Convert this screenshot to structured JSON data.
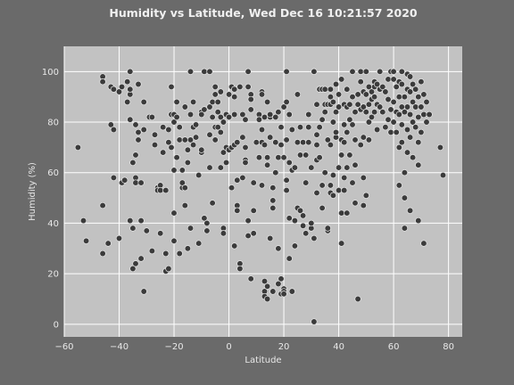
{
  "chart_data": {
    "type": "scatter",
    "title": "Humidity vs Latitude, Wed Dec 16 10:21:57 2020",
    "xlabel": "Latitude",
    "ylabel": "Humidity (%)",
    "xlim": [
      -60,
      85
    ],
    "ylim": [
      -5,
      110
    ],
    "xticks": [
      -60,
      -40,
      -20,
      0,
      20,
      40,
      60,
      80
    ],
    "yticks": [
      0,
      20,
      40,
      60,
      80,
      100
    ],
    "grid": true,
    "colors": {
      "page_bg": "#6a6a6a",
      "plot_bg": "#c2c2c2",
      "point_fill": "#3b3b3b",
      "point_edge": "#e6e6e6",
      "grid": "#ffffff"
    },
    "points": [
      [
        -55,
        70
      ],
      [
        -53,
        41
      ],
      [
        -52,
        33
      ],
      [
        -46,
        98
      ],
      [
        -46,
        96
      ],
      [
        -46,
        47
      ],
      [
        -46,
        28
      ],
      [
        -44,
        32
      ],
      [
        -43,
        79
      ],
      [
        -43,
        94
      ],
      [
        -42,
        77
      ],
      [
        -42,
        58
      ],
      [
        -42,
        93
      ],
      [
        -40,
        34
      ],
      [
        -40,
        92
      ],
      [
        -39,
        94
      ],
      [
        -39,
        56
      ],
      [
        -38,
        57
      ],
      [
        -37,
        88
      ],
      [
        -37,
        96
      ],
      [
        -36,
        100
      ],
      [
        -36,
        91
      ],
      [
        -36,
        93
      ],
      [
        -36,
        81
      ],
      [
        -36,
        41
      ],
      [
        -35,
        38
      ],
      [
        -35,
        22
      ],
      [
        -35,
        64
      ],
      [
        -34,
        79
      ],
      [
        -34,
        67
      ],
      [
        -34,
        58
      ],
      [
        -34,
        56
      ],
      [
        -34,
        24
      ],
      [
        -33,
        76
      ],
      [
        -33,
        95
      ],
      [
        -33,
        73
      ],
      [
        -32,
        56
      ],
      [
        -32,
        41
      ],
      [
        -32,
        26
      ],
      [
        -31,
        13
      ],
      [
        -31,
        88
      ],
      [
        -31,
        77
      ],
      [
        -30,
        37
      ],
      [
        -29,
        82
      ],
      [
        -28,
        82
      ],
      [
        -28,
        29
      ],
      [
        -27,
        75
      ],
      [
        -27,
        71
      ],
      [
        -26,
        54
      ],
      [
        -26,
        53
      ],
      [
        -25,
        55
      ],
      [
        -25,
        53
      ],
      [
        -25,
        36
      ],
      [
        -24,
        78
      ],
      [
        -24,
        68
      ],
      [
        -23,
        53
      ],
      [
        -23,
        28
      ],
      [
        -23,
        21
      ],
      [
        -22,
        22
      ],
      [
        -22,
        77
      ],
      [
        -22,
        72
      ],
      [
        -21,
        70
      ],
      [
        -21,
        83
      ],
      [
        -21,
        94
      ],
      [
        -20,
        80
      ],
      [
        -20,
        61
      ],
      [
        -20,
        83
      ],
      [
        -20,
        44
      ],
      [
        -20,
        33
      ],
      [
        -19,
        88
      ],
      [
        -19,
        82
      ],
      [
        -19,
        66
      ],
      [
        -18,
        28
      ],
      [
        -18,
        78
      ],
      [
        -18,
        73
      ],
      [
        -17,
        54
      ],
      [
        -17,
        56
      ],
      [
        -17,
        61
      ],
      [
        -16,
        86
      ],
      [
        -16,
        73
      ],
      [
        -16,
        54
      ],
      [
        -16,
        47
      ],
      [
        -15,
        64
      ],
      [
        -15,
        69
      ],
      [
        -15,
        30
      ],
      [
        -14,
        73
      ],
      [
        -14,
        83
      ],
      [
        -14,
        100
      ],
      [
        -14,
        38
      ],
      [
        -13,
        78
      ],
      [
        -13,
        71
      ],
      [
        -13,
        88
      ],
      [
        -12,
        79
      ],
      [
        -12,
        74
      ],
      [
        -11,
        32
      ],
      [
        -11,
        59
      ],
      [
        -10,
        68
      ],
      [
        -10,
        69
      ],
      [
        -10,
        84
      ],
      [
        -10,
        83
      ],
      [
        -9,
        100
      ],
      [
        -9,
        85
      ],
      [
        -9,
        42
      ],
      [
        -8,
        40
      ],
      [
        -8,
        37
      ],
      [
        -7,
        62
      ],
      [
        -7,
        86
      ],
      [
        -7,
        100
      ],
      [
        -7,
        75
      ],
      [
        -6,
        88
      ],
      [
        -6,
        82
      ],
      [
        -6,
        48
      ],
      [
        -5,
        94
      ],
      [
        -5,
        91
      ],
      [
        -5,
        78
      ],
      [
        -5,
        73
      ],
      [
        -4,
        88
      ],
      [
        -4,
        84
      ],
      [
        -4,
        78
      ],
      [
        -3,
        92
      ],
      [
        -3,
        82
      ],
      [
        -3,
        76
      ],
      [
        -3,
        62
      ],
      [
        -2,
        80
      ],
      [
        -2,
        68
      ],
      [
        -2,
        38
      ],
      [
        -2,
        36
      ],
      [
        -1,
        83
      ],
      [
        -1,
        70
      ],
      [
        -1,
        64
      ],
      [
        0,
        82
      ],
      [
        0,
        69
      ],
      [
        0,
        91
      ],
      [
        1,
        94
      ],
      [
        1,
        70
      ],
      [
        1,
        54
      ],
      [
        2,
        93
      ],
      [
        2,
        90
      ],
      [
        2,
        71
      ],
      [
        2,
        83
      ],
      [
        2,
        31
      ],
      [
        3,
        47
      ],
      [
        3,
        57
      ],
      [
        3,
        45
      ],
      [
        3,
        72
      ],
      [
        4,
        24
      ],
      [
        4,
        22
      ],
      [
        4,
        94
      ],
      [
        5,
        83
      ],
      [
        5,
        58
      ],
      [
        5,
        74
      ],
      [
        6,
        81
      ],
      [
        6,
        70
      ],
      [
        6,
        65
      ],
      [
        6,
        64
      ],
      [
        7,
        94
      ],
      [
        7,
        100
      ],
      [
        7,
        35
      ],
      [
        7,
        41
      ],
      [
        8,
        91
      ],
      [
        8,
        89
      ],
      [
        8,
        85
      ],
      [
        8,
        18
      ],
      [
        9,
        56
      ],
      [
        9,
        45
      ],
      [
        9,
        36
      ],
      [
        10,
        72
      ],
      [
        11,
        83
      ],
      [
        11,
        81
      ],
      [
        11,
        66
      ],
      [
        12,
        92
      ],
      [
        12,
        91
      ],
      [
        12,
        77
      ],
      [
        12,
        72
      ],
      [
        12,
        55
      ],
      [
        13,
        82
      ],
      [
        13,
        71
      ],
      [
        13,
        17
      ],
      [
        13,
        13
      ],
      [
        13,
        11
      ],
      [
        14,
        15
      ],
      [
        14,
        10
      ],
      [
        14,
        88
      ],
      [
        14,
        66
      ],
      [
        14,
        63
      ],
      [
        15,
        82
      ],
      [
        15,
        83
      ],
      [
        15,
        74
      ],
      [
        15,
        34
      ],
      [
        16,
        13
      ],
      [
        16,
        54
      ],
      [
        16,
        46
      ],
      [
        16,
        49
      ],
      [
        17,
        72
      ],
      [
        17,
        82
      ],
      [
        17,
        60
      ],
      [
        18,
        84
      ],
      [
        18,
        66
      ],
      [
        18,
        30
      ],
      [
        18,
        16
      ],
      [
        19,
        18
      ],
      [
        19,
        12
      ],
      [
        19,
        78
      ],
      [
        19,
        71
      ],
      [
        20,
        86
      ],
      [
        20,
        66
      ],
      [
        20,
        14
      ],
      [
        20,
        13
      ],
      [
        20,
        12
      ],
      [
        21,
        88
      ],
      [
        21,
        73
      ],
      [
        21,
        57
      ],
      [
        21,
        53
      ],
      [
        21,
        100
      ],
      [
        22,
        64
      ],
      [
        22,
        42
      ],
      [
        22,
        26
      ],
      [
        22,
        83
      ],
      [
        23,
        77
      ],
      [
        23,
        61
      ],
      [
        23,
        13
      ],
      [
        24,
        62
      ],
      [
        24,
        41
      ],
      [
        24,
        31
      ],
      [
        25,
        91
      ],
      [
        25,
        72
      ],
      [
        25,
        46
      ],
      [
        26,
        78
      ],
      [
        26,
        67
      ],
      [
        26,
        45
      ],
      [
        27,
        72
      ],
      [
        27,
        72
      ],
      [
        27,
        43
      ],
      [
        27,
        39
      ],
      [
        28,
        36
      ],
      [
        28,
        56
      ],
      [
        28,
        67
      ],
      [
        29,
        83
      ],
      [
        29,
        72
      ],
      [
        29,
        78
      ],
      [
        30,
        62
      ],
      [
        30,
        38
      ],
      [
        30,
        40
      ],
      [
        31,
        100
      ],
      [
        31,
        100
      ],
      [
        31,
        34
      ],
      [
        31,
        1
      ],
      [
        32,
        87
      ],
      [
        32,
        75
      ],
      [
        32,
        71
      ],
      [
        32,
        65
      ],
      [
        32,
        52
      ],
      [
        33,
        93
      ],
      [
        33,
        93
      ],
      [
        33,
        78
      ],
      [
        33,
        66
      ],
      [
        34,
        93
      ],
      [
        34,
        81
      ],
      [
        34,
        46
      ],
      [
        34,
        55
      ],
      [
        35,
        87
      ],
      [
        35,
        93
      ],
      [
        35,
        84
      ],
      [
        35,
        60
      ],
      [
        36,
        87
      ],
      [
        36,
        73
      ],
      [
        36,
        37
      ],
      [
        36,
        38
      ],
      [
        37,
        93
      ],
      [
        37,
        90
      ],
      [
        37,
        87
      ],
      [
        37,
        71
      ],
      [
        37,
        55
      ],
      [
        37,
        52
      ],
      [
        38,
        88
      ],
      [
        38,
        80
      ],
      [
        38,
        59
      ],
      [
        38,
        51
      ],
      [
        39,
        95
      ],
      [
        39,
        84
      ],
      [
        39,
        74
      ],
      [
        39,
        76
      ],
      [
        40,
        91
      ],
      [
        40,
        86
      ],
      [
        40,
        62
      ],
      [
        40,
        53
      ],
      [
        41,
        97
      ],
      [
        41,
        73
      ],
      [
        41,
        44
      ],
      [
        41,
        32
      ],
      [
        41,
        67
      ],
      [
        42,
        87
      ],
      [
        42,
        79
      ],
      [
        42,
        72
      ],
      [
        42,
        58
      ],
      [
        42,
        53
      ],
      [
        43,
        93
      ],
      [
        43,
        86
      ],
      [
        43,
        76
      ],
      [
        43,
        44
      ],
      [
        43,
        62
      ],
      [
        44,
        81
      ],
      [
        44,
        87
      ],
      [
        44,
        67
      ],
      [
        45,
        90
      ],
      [
        45,
        79
      ],
      [
        45,
        56
      ],
      [
        45,
        100
      ],
      [
        46,
        84
      ],
      [
        46,
        73
      ],
      [
        46,
        63
      ],
      [
        46,
        48
      ],
      [
        47,
        87
      ],
      [
        47,
        91
      ],
      [
        47,
        10
      ],
      [
        48,
        100
      ],
      [
        48,
        96
      ],
      [
        48,
        85
      ],
      [
        48,
        71
      ],
      [
        49,
        92
      ],
      [
        49,
        86
      ],
      [
        49,
        74
      ],
      [
        49,
        58
      ],
      [
        49,
        47
      ],
      [
        50,
        100
      ],
      [
        50,
        91
      ],
      [
        50,
        84
      ],
      [
        50,
        51
      ],
      [
        51,
        94
      ],
      [
        51,
        87
      ],
      [
        51,
        80
      ],
      [
        51,
        73
      ],
      [
        52,
        92
      ],
      [
        52,
        89
      ],
      [
        52,
        82
      ],
      [
        53,
        96
      ],
      [
        53,
        94
      ],
      [
        53,
        90
      ],
      [
        53,
        84
      ],
      [
        54,
        95
      ],
      [
        54,
        87
      ],
      [
        54,
        77
      ],
      [
        55,
        100
      ],
      [
        55,
        93
      ],
      [
        55,
        86
      ],
      [
        56,
        94
      ],
      [
        56,
        84
      ],
      [
        57,
        92
      ],
      [
        57,
        78
      ],
      [
        58,
        97
      ],
      [
        58,
        89
      ],
      [
        58,
        81
      ],
      [
        59,
        100
      ],
      [
        59,
        85
      ],
      [
        59,
        76
      ],
      [
        60,
        97
      ],
      [
        60,
        88
      ],
      [
        60,
        80
      ],
      [
        60,
        100
      ],
      [
        61,
        94
      ],
      [
        61,
        84
      ],
      [
        61,
        76
      ],
      [
        62,
        96
      ],
      [
        62,
        90
      ],
      [
        62,
        83
      ],
      [
        62,
        70
      ],
      [
        62,
        55
      ],
      [
        63,
        100
      ],
      [
        63,
        95
      ],
      [
        63,
        86
      ],
      [
        63,
        79
      ],
      [
        63,
        72
      ],
      [
        64,
        90
      ],
      [
        64,
        84
      ],
      [
        64,
        60
      ],
      [
        64,
        38
      ],
      [
        64,
        50
      ],
      [
        65,
        99
      ],
      [
        65,
        93
      ],
      [
        65,
        86
      ],
      [
        65,
        77
      ],
      [
        65,
        68
      ],
      [
        66,
        98
      ],
      [
        66,
        92
      ],
      [
        66,
        83
      ],
      [
        66,
        74
      ],
      [
        66,
        45
      ],
      [
        67,
        95
      ],
      [
        67,
        88
      ],
      [
        67,
        80
      ],
      [
        67,
        66
      ],
      [
        68,
        93
      ],
      [
        68,
        86
      ],
      [
        68,
        78
      ],
      [
        69,
        90
      ],
      [
        69,
        82
      ],
      [
        69,
        72
      ],
      [
        69,
        63
      ],
      [
        69,
        41
      ],
      [
        70,
        96
      ],
      [
        70,
        86
      ],
      [
        70,
        76
      ],
      [
        71,
        91
      ],
      [
        71,
        83
      ],
      [
        71,
        32
      ],
      [
        72,
        88
      ],
      [
        72,
        80
      ],
      [
        73,
        83
      ],
      [
        77,
        70
      ],
      [
        78,
        59
      ]
    ]
  }
}
